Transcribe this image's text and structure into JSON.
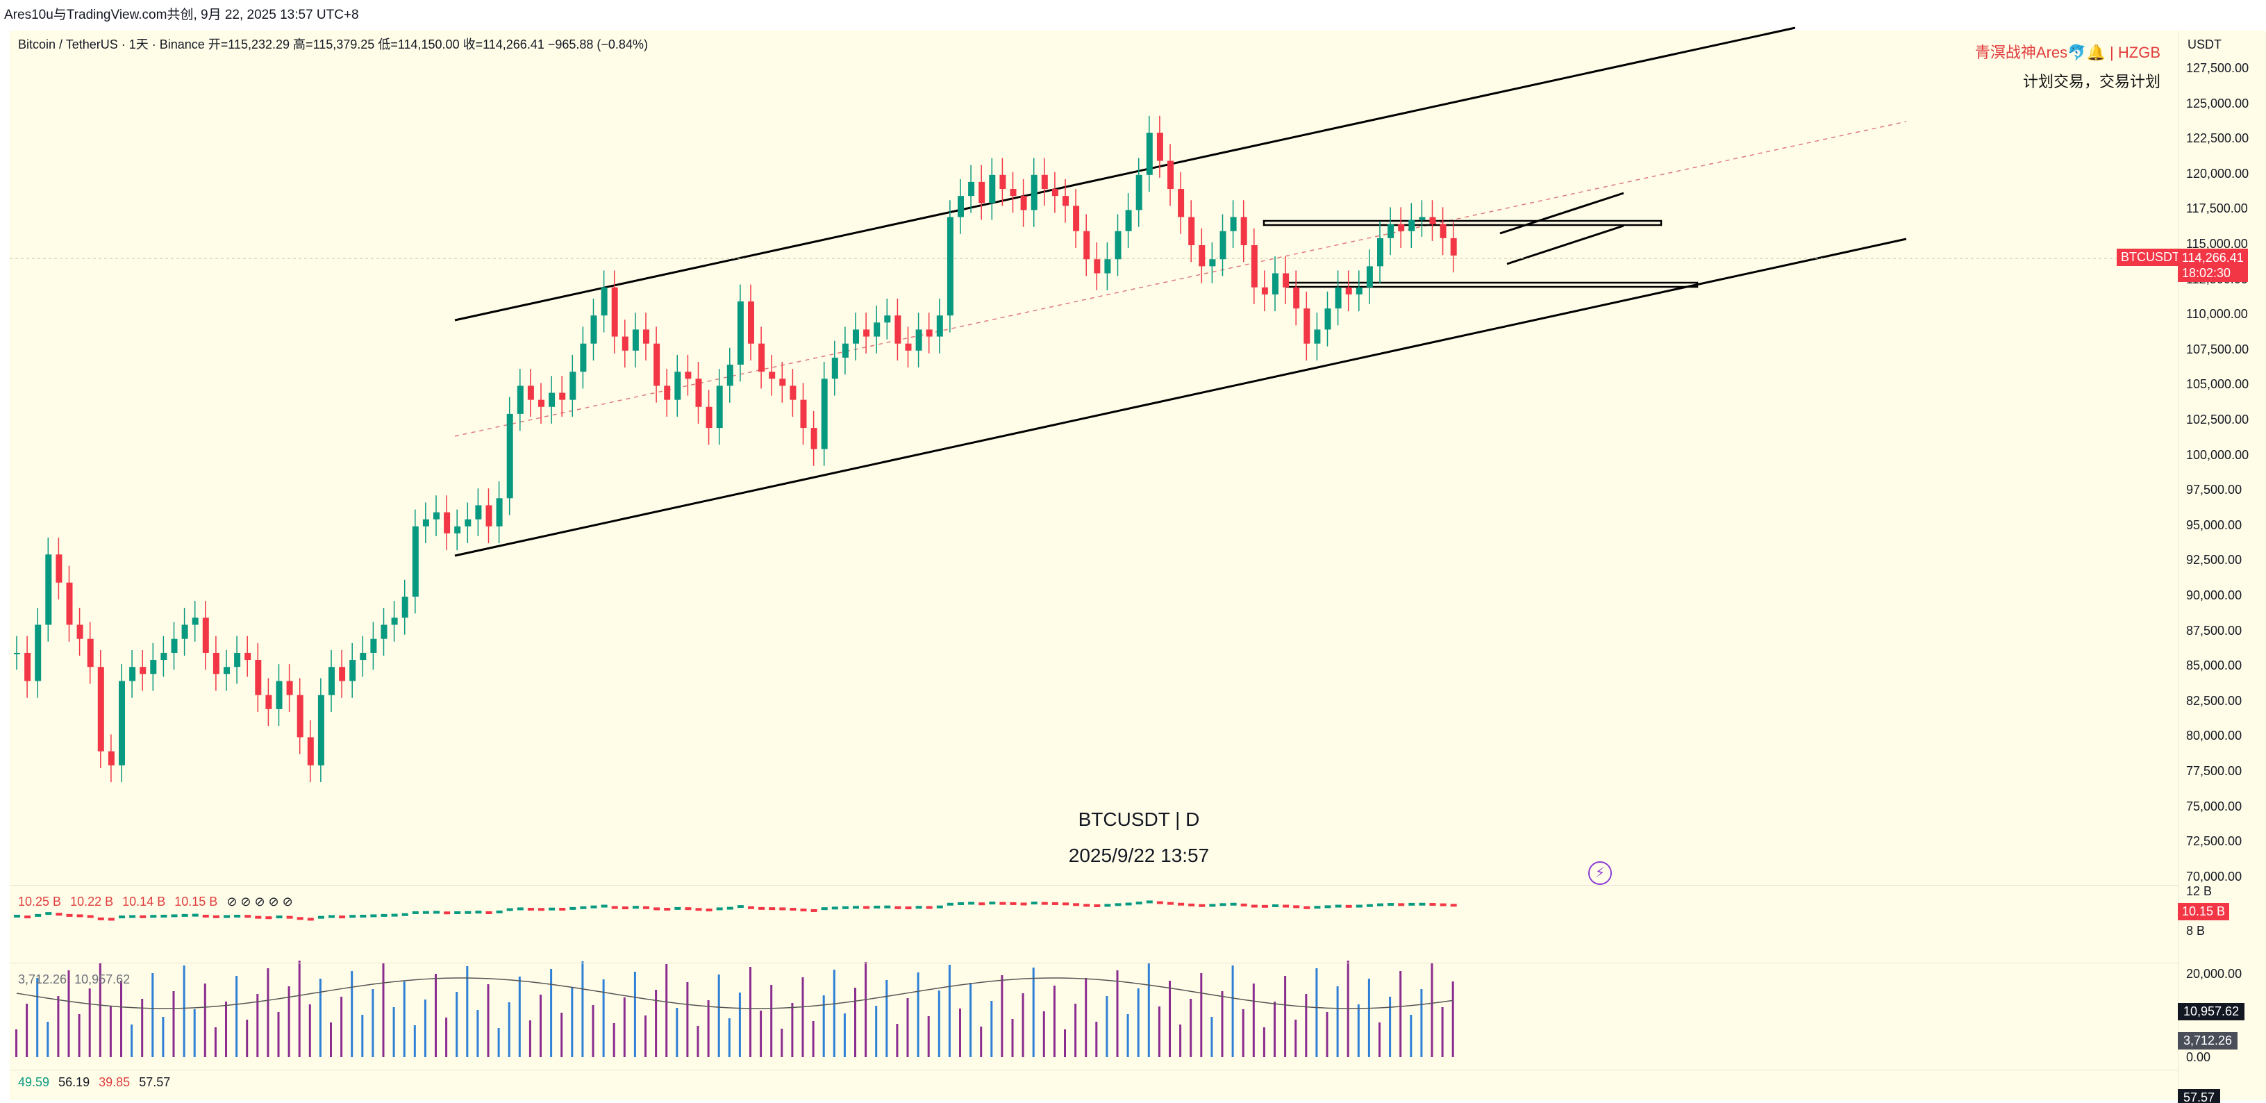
{
  "header": {
    "text": "Ares10u与TradingView.com共创, 9月 22, 2025 13:57 UTC+8"
  },
  "legend": {
    "text": "Bitcoin / TetherUS · 1天 · Binance  开=115,232.29  高=115,379.25  低=114,150.00  收=114,266.41  −965.88 (−0.84%)"
  },
  "brand": {
    "line1": "青溟战神Ares🐬🔔 | HZGB",
    "line2": "计划交易，交易计划"
  },
  "axis": {
    "currency": "USDT",
    "ticks": [
      "127,500.00",
      "125,000.00",
      "122,500.00",
      "120,000.00",
      "117,500.00",
      "115,000.00",
      "112,500.00",
      "110,000.00",
      "107,500.00",
      "105,000.00",
      "102,500.00",
      "100,000.00",
      "97,500.00",
      "95,000.00",
      "92,500.00",
      "90,000.00",
      "87,500.00",
      "85,000.00",
      "82,500.00",
      "80,000.00",
      "77,500.00",
      "75,000.00",
      "72,500.00",
      "70,000.00"
    ]
  },
  "price_tag": {
    "symbol": "BTCUSDT",
    "price": "114,266.41",
    "countdown": "18:02:30"
  },
  "watermark": {
    "symbol": "BTCUSDT | D",
    "datetime": "2025/9/22 13:57"
  },
  "indicator1": {
    "values": [
      "10.25 B",
      "10.22 B",
      "10.14 B",
      "10.15 B"
    ],
    "axis_top": "12 B",
    "axis_bottom": "8 B",
    "tag": "10.15 B"
  },
  "indicator2": {
    "values": [
      "3,712.26",
      "10,957.62"
    ],
    "axis_top": "20,000.00",
    "tag1": "10,957.62",
    "tag2": "3,712.26",
    "axis_zero": "0.00"
  },
  "indicator3": {
    "values": [
      "49.59",
      "56.19",
      "39.85",
      "57.57"
    ],
    "tag": "57.57"
  },
  "colors": {
    "up": "#089981",
    "down": "#f23645",
    "channel": "#000000",
    "bg": "#fffde8",
    "vol_blue": "#2e7fd6",
    "vol_purple": "#8b2c8f"
  }
}
